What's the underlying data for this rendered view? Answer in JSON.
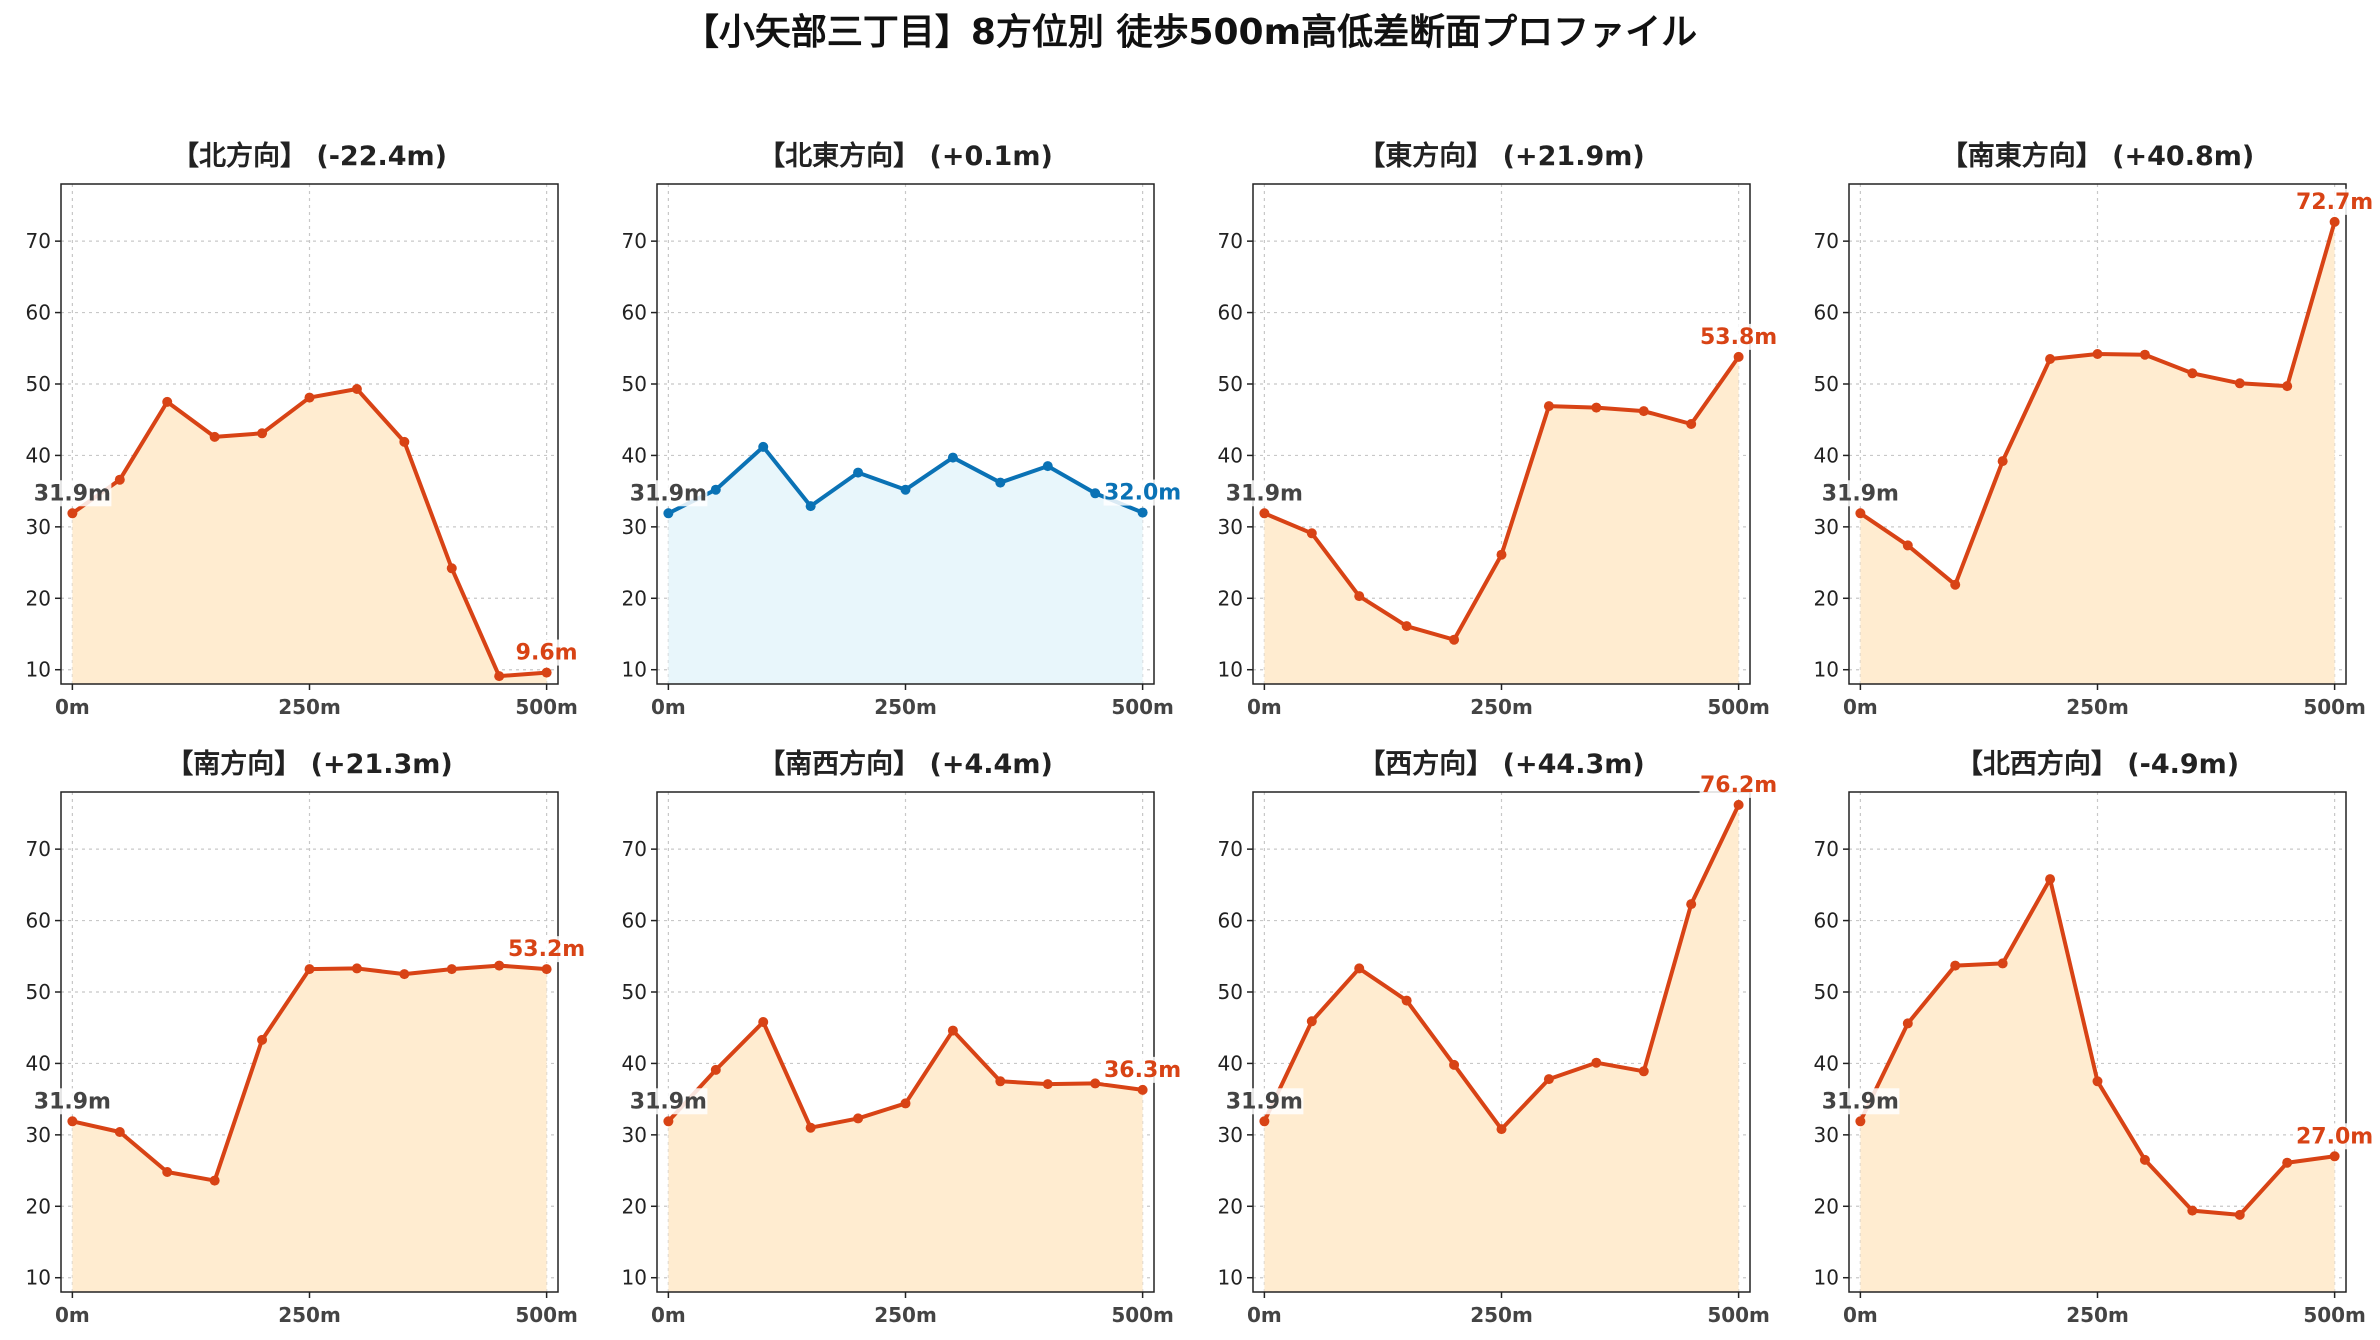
{
  "title": "【小矢部三丁目】8方位別 徒歩500m高低差断面プロファイル",
  "colors": {
    "down_line": "#d84315",
    "down_fill": "#ffecd0",
    "flat_line": "#0a72b5",
    "flat_fill": "#e8f6fb",
    "start_label": "#444444",
    "grid": "#c8c8c8"
  },
  "chart_data": [
    {
      "type": "area",
      "title": "【北方向】 (-22.4m)",
      "style": "up",
      "x": [
        0,
        50,
        100,
        150,
        200,
        250,
        300,
        350,
        400,
        450,
        500
      ],
      "values": [
        31.9,
        36.6,
        47.5,
        42.6,
        43.1,
        48.1,
        49.3,
        41.9,
        24.2,
        9.1,
        9.6
      ],
      "start_label": "31.9m",
      "end_label": "9.6m",
      "xticks": [
        "0m",
        "250m",
        "500m"
      ],
      "yticks": [
        10,
        20,
        30,
        40,
        50,
        60,
        70
      ],
      "ylim": [
        8,
        78
      ],
      "xlim": [
        -12,
        512
      ],
      "grid": true
    },
    {
      "type": "area",
      "title": "【北東方向】 (+0.1m)",
      "style": "flat",
      "x": [
        0,
        50,
        100,
        150,
        200,
        250,
        300,
        350,
        400,
        450,
        500
      ],
      "values": [
        31.9,
        35.2,
        41.2,
        32.9,
        37.6,
        35.2,
        39.7,
        36.2,
        38.5,
        34.7,
        32.0
      ],
      "start_label": "31.9m",
      "end_label": "32.0m",
      "xticks": [
        "0m",
        "250m",
        "500m"
      ],
      "yticks": [
        10,
        20,
        30,
        40,
        50,
        60,
        70
      ],
      "ylim": [
        8,
        78
      ],
      "xlim": [
        -12,
        512
      ],
      "grid": true
    },
    {
      "type": "area",
      "title": "【東方向】 (+21.9m)",
      "style": "up",
      "x": [
        0,
        50,
        100,
        150,
        200,
        250,
        300,
        350,
        400,
        450,
        500
      ],
      "values": [
        31.9,
        29.1,
        20.3,
        16.1,
        14.2,
        26.1,
        46.9,
        46.7,
        46.2,
        44.4,
        53.8
      ],
      "start_label": "31.9m",
      "end_label": "53.8m",
      "xticks": [
        "0m",
        "250m",
        "500m"
      ],
      "yticks": [
        10,
        20,
        30,
        40,
        50,
        60,
        70
      ],
      "ylim": [
        8,
        78
      ],
      "xlim": [
        -12,
        512
      ],
      "grid": true
    },
    {
      "type": "area",
      "title": "【南東方向】 (+40.8m)",
      "style": "up",
      "x": [
        0,
        50,
        100,
        150,
        200,
        250,
        300,
        350,
        400,
        450,
        500
      ],
      "values": [
        31.9,
        27.4,
        21.9,
        39.2,
        53.5,
        54.2,
        54.1,
        51.5,
        50.1,
        49.7,
        72.7
      ],
      "start_label": "31.9m",
      "end_label": "72.7m",
      "xticks": [
        "0m",
        "250m",
        "500m"
      ],
      "yticks": [
        10,
        20,
        30,
        40,
        50,
        60,
        70
      ],
      "ylim": [
        8,
        78
      ],
      "xlim": [
        -12,
        512
      ],
      "grid": true
    },
    {
      "type": "area",
      "title": "【南方向】 (+21.3m)",
      "style": "up",
      "x": [
        0,
        50,
        100,
        150,
        200,
        250,
        300,
        350,
        400,
        450,
        500
      ],
      "values": [
        31.9,
        30.4,
        24.8,
        23.6,
        43.3,
        53.2,
        53.3,
        52.5,
        53.2,
        53.7,
        53.2
      ],
      "start_label": "31.9m",
      "end_label": "53.2m",
      "xticks": [
        "0m",
        "250m",
        "500m"
      ],
      "yticks": [
        10,
        20,
        30,
        40,
        50,
        60,
        70
      ],
      "ylim": [
        8,
        78
      ],
      "xlim": [
        -12,
        512
      ],
      "grid": true
    },
    {
      "type": "area",
      "title": "【南西方向】 (+4.4m)",
      "style": "up",
      "x": [
        0,
        50,
        100,
        150,
        200,
        250,
        300,
        350,
        400,
        450,
        500
      ],
      "values": [
        31.9,
        39.1,
        45.8,
        31.0,
        32.3,
        34.4,
        44.6,
        37.5,
        37.1,
        37.2,
        36.3
      ],
      "start_label": "31.9m",
      "end_label": "36.3m",
      "xticks": [
        "0m",
        "250m",
        "500m"
      ],
      "yticks": [
        10,
        20,
        30,
        40,
        50,
        60,
        70
      ],
      "ylim": [
        8,
        78
      ],
      "xlim": [
        -12,
        512
      ],
      "grid": true
    },
    {
      "type": "area",
      "title": "【西方向】 (+44.3m)",
      "style": "up",
      "x": [
        0,
        50,
        100,
        150,
        200,
        250,
        300,
        350,
        400,
        450,
        500
      ],
      "values": [
        31.9,
        45.9,
        53.3,
        48.8,
        39.8,
        30.8,
        37.8,
        40.1,
        38.9,
        62.3,
        76.2
      ],
      "start_label": "31.9m",
      "end_label": "76.2m",
      "xticks": [
        "0m",
        "250m",
        "500m"
      ],
      "yticks": [
        10,
        20,
        30,
        40,
        50,
        60,
        70
      ],
      "ylim": [
        8,
        78
      ],
      "xlim": [
        -12,
        512
      ],
      "grid": true
    },
    {
      "type": "area",
      "title": "【北西方向】 (-4.9m)",
      "style": "up",
      "x": [
        0,
        50,
        100,
        150,
        200,
        250,
        300,
        350,
        400,
        450,
        500
      ],
      "values": [
        31.9,
        45.6,
        53.7,
        54.0,
        65.8,
        37.5,
        26.5,
        19.4,
        18.8,
        26.1,
        27.0
      ],
      "start_label": "31.9m",
      "end_label": "27.0m",
      "xticks": [
        "0m",
        "250m",
        "500m"
      ],
      "yticks": [
        10,
        20,
        30,
        40,
        50,
        60,
        70
      ],
      "ylim": [
        8,
        78
      ],
      "xlim": [
        -12,
        512
      ],
      "grid": true
    }
  ]
}
